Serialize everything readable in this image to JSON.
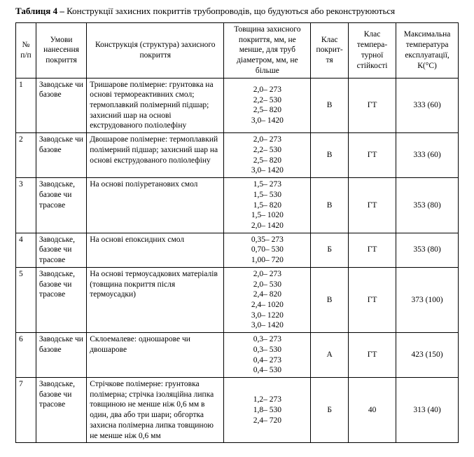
{
  "caption_bold": "Таблиця 4 –",
  "caption_rest": " Конструкції захисних покриттів трубопроводів, що будуються або реконструюються",
  "headers": {
    "num": "№ п/п",
    "cond": "Умови нанесення покриття",
    "struct": "Конструкція (структура) захисного покриття",
    "thick": "Товщина захисного покриття, мм, не менше, для труб діаметром, мм, не більше",
    "class": "Клас покрит-тя",
    "temp_class": "Клас темпера-турної стійкості",
    "max_temp": "Максимальна температура експлуатації, К(°С)"
  },
  "rows": [
    {
      "n": "1",
      "cond": "Заводське чи базове",
      "struct": "Тришарове полімерне: грунтовка на основі термореактивних смол; термоплавкий полімерний підшар; захисний шар на основі екструдованого поліолефіну",
      "thick": "2,0– 273\n2,2– 530\n2,5– 820\n3,0– 1420",
      "class": "В",
      "temp_class": "ГТ",
      "max_temp": "333 (60)"
    },
    {
      "n": "2",
      "cond": "Заводське чи базове",
      "struct": "Двошарове полімерне: термоплавкий полімерний підшар; захисний шар на основі екструдованого поліолефіну",
      "thick": "2,0– 273\n2,2– 530\n2,5– 820\n3,0– 1420",
      "class": "В",
      "temp_class": "ГТ",
      "max_temp": "333 (60)"
    },
    {
      "n": "3",
      "cond": "Заводське, базове чи трасове",
      "struct": "На основі поліуретанових смол",
      "thick": "1,5– 273\n1,5– 530\n1,5– 820\n1,5– 1020\n2,0– 1420",
      "class": "В",
      "temp_class": "ГТ",
      "max_temp": "353 (80)"
    },
    {
      "n": "4",
      "cond": "Заводське, базове чи трасове",
      "struct": "На основі епоксидних смол",
      "thick": "0,35– 273\n0,70– 530\n1,00– 720",
      "class": "Б",
      "temp_class": "ГТ",
      "max_temp": "353 (80)"
    },
    {
      "n": "5",
      "cond": "Заводське, базове чи трасове",
      "struct": "На основі термоусадкових матеріалів (товщина покриття після термоусадки)",
      "thick": "2,0– 273\n2,0– 530\n2,4– 820\n2,4– 1020\n3,0– 1220\n3,0– 1420",
      "class": "В",
      "temp_class": "ГТ",
      "max_temp": "373 (100)"
    },
    {
      "n": "6",
      "cond": "Заводське чи базове",
      "struct": "Склоемалеве: одношарове чи двошарове",
      "thick": "0,3– 273\n0,3– 530\n0,4– 273\n0,4– 530",
      "class": "А",
      "temp_class": "ГТ",
      "max_temp": "423 (150)"
    },
    {
      "n": "7",
      "cond": "Заводське, базове чи трасове",
      "struct": "Стрічкове полімерне: грунтовка полімерна; стрічка ізоляційна липка товщиною не менше ніж 0,6 мм в один, два або три шари; обгортка захисна полімерна липка товщиною не менше ніж 0,6 мм",
      "thick": "1,2– 273\n1,8– 530\n2,4– 720",
      "class": "Б",
      "temp_class": "40",
      "max_temp": "313 (40)"
    }
  ]
}
